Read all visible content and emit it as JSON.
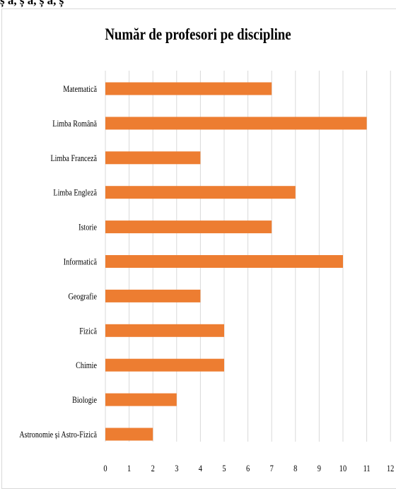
{
  "top_text": "ș ǎ, ș ǎ, ș ǎ, ș",
  "chart_data": {
    "type": "bar",
    "orientation": "horizontal",
    "title": "Număr de profesori pe discipline",
    "categories": [
      "Matematică",
      "Limba Română",
      "Limba Franceză",
      "Limba Engleză",
      "Istorie",
      "Informatică",
      "Geografie",
      "Fizică",
      "Chimie",
      "Biologie",
      "Astronomie și Astro-Fizică"
    ],
    "values": [
      7,
      11,
      4,
      8,
      7,
      10,
      4,
      5,
      5,
      3,
      2
    ],
    "xlim": [
      0,
      12
    ],
    "xticks": [
      "0",
      "1",
      "2",
      "3",
      "4",
      "5",
      "6",
      "7",
      "8",
      "9",
      "10",
      "11",
      "12"
    ],
    "grid": true,
    "legend": "none",
    "bar_color": "#ED7D31",
    "grid_color": "#D9D9D9"
  }
}
